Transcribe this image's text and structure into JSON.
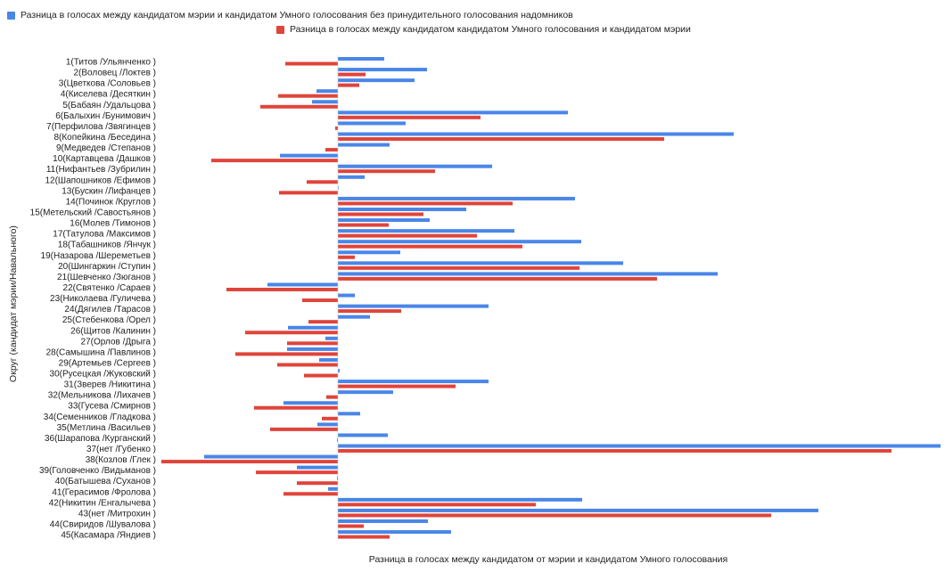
{
  "chart_data": {
    "type": "bar",
    "orientation": "horizontal",
    "title": "",
    "xlabel": "Разница в голосах между кандидатом от мэрии и кандидатом Умного голосования",
    "ylabel": "Округ (кандидат мэрии/Навального)",
    "xlim": [
      -200,
      680
    ],
    "grid": false,
    "legend_position": "top",
    "categories": [
      "1(Титов /Ульянченко )",
      "2(Воловец /Локтев )",
      "3(Цветкова /Соловьев )",
      "4(Киселева /Десяткин )",
      "5(Бабаян /Удальцова )",
      "6(Балыхин /Бунимович )",
      "7(Перфилова /Звягинцев )",
      "8(Копейкина /Беседина )",
      "9(Медведев /Степанов )",
      "10(Картавцева /Дашков )",
      "11(Нифантьев /Зубрилин )",
      "12(Шапошников /Ефимов )",
      "13(Бускин /Лифанцев )",
      "14(Починок /Круглов )",
      "15(Метельский /Савостьянов )",
      "16(Молев /Тимонов )",
      "17(Татулова /Максимов )",
      "18(Табашников /Янчук )",
      "19(Назарова /Шереметьев )",
      "20(Шингаркин /Ступин )",
      "21(Шевченко /Зюганов )",
      "22(Святенко /Сараев )",
      "23(Николаева /Гуличева )",
      "24(Дягилев /Тарасов )",
      "25(Стебенкова /Орел )",
      "26(Щитов /Калинин )",
      "27(Орлов /Дрыга )",
      "28(Самышина /Павлинов )",
      "29(Артемьев /Сергеев )",
      "30(Русецкая /Жуковский )",
      "31(Зверев /Никитина )",
      "32(Мельникова /Лихачев )",
      "33(Гусева /Смирнов )",
      "34(Семенников /Гладкова )",
      "35(Метлина /Васильев )",
      "36(Шарапова /Курганский )",
      "37(нет /Губенко )",
      "38(Козлов /Глек )",
      "39(Головченко /Видьманов )",
      "40(Батышева /Суханов )",
      "41(Герасимов /Фролова )",
      "42(Никитин /Енгалычева )",
      "43(нет /Митрохин )",
      "44(Свиридов /Шувалова )",
      "45(Касамара /Яндиев )"
    ],
    "series": [
      {
        "name": "Разница в голосах между кандидатом мэрии и кандидатом  Умного голосования без принудительного голосования надомников",
        "color": "#4a86e8",
        "values": [
          52,
          100,
          86,
          -24,
          -29,
          258,
          76,
          444,
          58,
          -65,
          173,
          30,
          0,
          266,
          144,
          103,
          198,
          273,
          70,
          320,
          426,
          -79,
          19,
          169,
          36,
          -56,
          -14,
          -57,
          -21,
          2,
          169,
          62,
          -61,
          25,
          -23,
          56,
          676,
          -150,
          -46,
          -1,
          -11,
          274,
          539,
          101,
          127
        ]
      },
      {
        "name": "Разница в голосах между кандидатом кандидатом Умного голосования и кандидатом мэрии",
        "color": "#e0443a",
        "values": [
          -59,
          31,
          24,
          -67,
          -87,
          160,
          -3,
          366,
          -14,
          -142,
          109,
          -35,
          -66,
          196,
          96,
          57,
          156,
          207,
          19,
          271,
          358,
          -125,
          -40,
          71,
          -33,
          -104,
          -57,
          -115,
          -68,
          -38,
          132,
          -13,
          -94,
          -18,
          -76,
          -1,
          621,
          -198,
          -92,
          -46,
          -61,
          222,
          486,
          29,
          58
        ]
      }
    ]
  }
}
